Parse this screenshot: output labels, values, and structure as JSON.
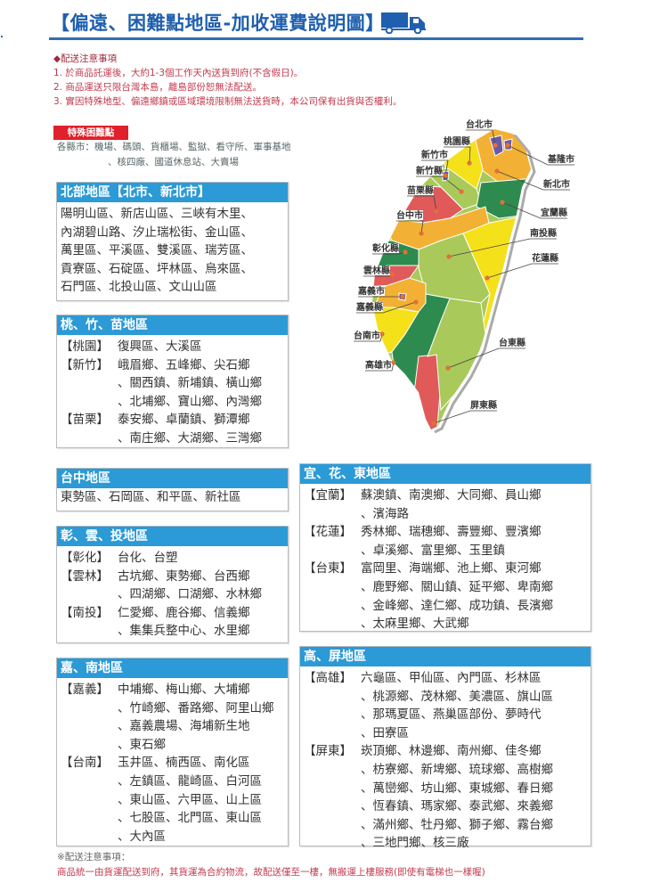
{
  "header": {
    "title": "【偏遠、困難點地區-加收運費說明圖】",
    "icon": "truck-icon",
    "color": "#1f5fae"
  },
  "notes": {
    "heading": "◆配送注意事項",
    "items": [
      "1. 於商品託運後，大約1-3個工作天內送貨到府(不含假日)。",
      "2. 商品運送只限台灣本島，離島部份恕無法配送。",
      "3. 實因特殊地型、偏遠鄉鎮或區域環境限制無法送貨時，本公司保有出貨與否權利。"
    ]
  },
  "special": {
    "badge": "特殊困難點",
    "line1": "各縣市：機場、碼頭、貨櫃場、監獄、看守所、軍事基地",
    "line2": "、核四廠、國道休息站、大賣場"
  },
  "map": {
    "labels": [
      "台北市",
      "桃園縣",
      "新竹市",
      "新竹縣",
      "苗栗縣",
      "台中市",
      "彰化縣",
      "雲林縣",
      "嘉義市",
      "嘉義縣",
      "台南市",
      "高雄市",
      "基隆市",
      "新北市",
      "宜蘭縣",
      "南投縣",
      "花蓮縣",
      "台東縣",
      "屏東縣"
    ]
  },
  "regions": [
    {
      "id": "north",
      "title": "北部地區【北市、新北市】",
      "rows": [
        {
          "p": "",
          "t": "陽明山區、新店山區、三峽有木里、"
        },
        {
          "p": "",
          "t": "內湖碧山路、汐止瑞松街、金山區、"
        },
        {
          "p": "",
          "t": "萬里區、平溪區、雙溪區、瑞芳區、"
        },
        {
          "p": "",
          "t": "貢寮區、石碇區、坪林區、烏來區、"
        },
        {
          "p": "",
          "t": "石門區、北投山區、文山山區"
        }
      ]
    },
    {
      "id": "tao-zhu-miao",
      "title": "桃、竹、苗地區",
      "rows": [
        {
          "p": "【桃園】",
          "t": "復興區、大溪區"
        },
        {
          "p": "【新竹】",
          "t": "峨眉鄉、五峰鄉、尖石鄉"
        },
        {
          "p": "",
          "t": "、關西鎮、新埔鎮、橫山鄉"
        },
        {
          "p": "",
          "t": "、北埔鄉、寶山鄉、內灣鄉"
        },
        {
          "p": "【苗栗】",
          "t": "泰安鄉、卓蘭鎮、獅潭鄉"
        },
        {
          "p": "",
          "t": "、南庄鄉、大湖鄉、三灣鄉"
        }
      ]
    },
    {
      "id": "taichung",
      "title": "台中地區",
      "rows": [
        {
          "p": "",
          "t": "東勢區、石岡區、和平區、新社區"
        }
      ]
    },
    {
      "id": "zhang-yun-tou",
      "title": "彰、雲、投地區",
      "rows": [
        {
          "p": "【彰化】",
          "t": "台化、台塑"
        },
        {
          "p": "【雲林】",
          "t": "古坑鄉、東勢鄉、台西鄉"
        },
        {
          "p": "",
          "t": "、四湖鄉、口湖鄉、水林鄉"
        },
        {
          "p": "【南投】",
          "t": "仁愛鄉、鹿谷鄉、信義鄉"
        },
        {
          "p": "",
          "t": "、集集兵整中心、水里鄉"
        }
      ]
    },
    {
      "id": "yi-hua-dong",
      "title": "宜、花、東地區",
      "rows": [
        {
          "p": "【宜蘭】",
          "t": "蘇澳鎮、南澳鄉、大同鄉、員山鄉"
        },
        {
          "p": "",
          "t": "、濱海路"
        },
        {
          "p": "【花蓮】",
          "t": "秀林鄉、瑞穗鄉、壽豐鄉、豐濱鄉"
        },
        {
          "p": "",
          "t": "、卓溪鄉、富里鄉、玉里鎮"
        },
        {
          "p": "【台東】",
          "t": "富岡里、海端鄉、池上鄉、東河鄉"
        },
        {
          "p": "",
          "t": "、鹿野鄉、關山鎮、延平鄉、卑南鄉"
        },
        {
          "p": "",
          "t": "、金峰鄉、達仁鄉、成功鎮、長濱鄉"
        },
        {
          "p": "",
          "t": "、太麻里鄉、大武鄉"
        }
      ]
    },
    {
      "id": "jia-nan",
      "title": "嘉、南地區",
      "rows": [
        {
          "p": "【嘉義】",
          "t": "中埔鄉、梅山鄉、大埔鄉"
        },
        {
          "p": "",
          "t": "、竹崎鄉、番路鄉、阿里山鄉"
        },
        {
          "p": "",
          "t": "、嘉義農場、海埔新生地"
        },
        {
          "p": "",
          "t": "、東石鄉"
        },
        {
          "p": "【台南】",
          "t": "玉井區、楠西區、南化區"
        },
        {
          "p": "",
          "t": "、左鎮區、龍崎區、白河區"
        },
        {
          "p": "",
          "t": "、東山區、六甲區、山上區"
        },
        {
          "p": "",
          "t": "、七股區、北門區、東山區"
        },
        {
          "p": "",
          "t": "、大內區"
        }
      ]
    },
    {
      "id": "gao-ping",
      "title": "高、屏地區",
      "rows": [
        {
          "p": "【高雄】",
          "t": "六龜區、甲仙區、內門區、杉林區"
        },
        {
          "p": "",
          "t": "、桃源鄉、茂林鄉、美濃區、旗山區"
        },
        {
          "p": "",
          "t": "、那瑪夏區、燕巢區部份、夢時代"
        },
        {
          "p": "",
          "t": "、田寮區"
        },
        {
          "p": "【屏東】",
          "t": "崁頂鄉、林邊鄉、南州鄉、佳冬鄉"
        },
        {
          "p": "",
          "t": "、枋寮鄉、新埤鄉、琉球鄉、高樹鄉"
        },
        {
          "p": "",
          "t": "、萬巒鄉、坊山鄉、東城鄉、春日鄉"
        },
        {
          "p": "",
          "t": "、恆春鎮、瑪家鄉、泰武鄉、來義鄉"
        },
        {
          "p": "",
          "t": "、滿州鄉、牡丹鄉、獅子鄉、霧台鄉"
        },
        {
          "p": "",
          "t": "、三地門鄉、核三廠"
        }
      ]
    }
  ],
  "footer": {
    "heading": "※配送注意事項：",
    "line": "商品統一由貨運配送到府，其貨運為合約物流，故配送僅至一樓，無搬運上樓服務(即使有電梯也一樣喔)"
  },
  "colors": {
    "header_blue": "#2b9ad6",
    "badge_red": "#e0202a",
    "note_red": "#c23a4e"
  }
}
